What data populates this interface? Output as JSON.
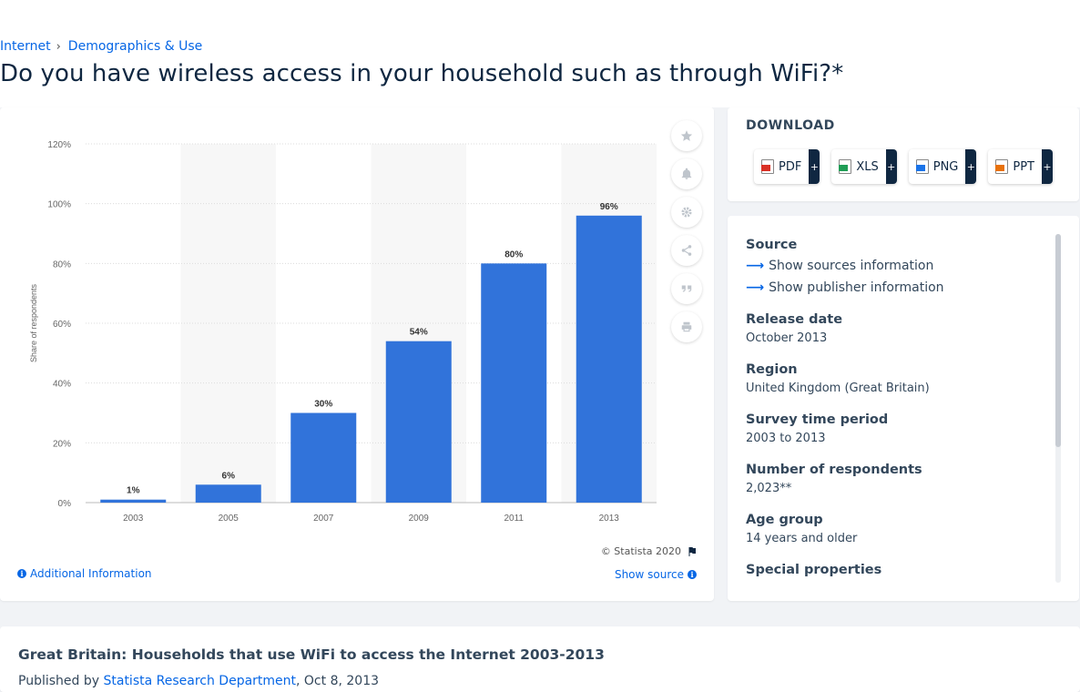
{
  "breadcrumb": {
    "items": [
      "Internet",
      "Demographics & Use"
    ],
    "separator": "›"
  },
  "page_title": "Do you have wireless access in your household such as through WiFi?*",
  "chart_data": {
    "type": "bar",
    "categories": [
      "2003",
      "2005",
      "2007",
      "2009",
      "2011",
      "2013"
    ],
    "values": [
      1,
      6,
      30,
      54,
      80,
      96
    ],
    "value_labels": [
      "1%",
      "6%",
      "30%",
      "54%",
      "80%",
      "96%"
    ],
    "ylabel": "Share of respondents",
    "xlabel": "",
    "ylim": [
      0,
      120
    ],
    "yticks": [
      "0%",
      "20%",
      "40%",
      "60%",
      "80%",
      "100%",
      "120%"
    ],
    "ytick_values": [
      0,
      20,
      40,
      60,
      80,
      100,
      120
    ],
    "bar_color": "#3173da",
    "grid": true,
    "alternate_column_shading": true
  },
  "chart_card": {
    "copyright": "© Statista 2020",
    "additional_info": "Additional Information",
    "show_source": "Show source",
    "tools": [
      "star-icon",
      "bell-icon",
      "gear-icon",
      "share-icon",
      "quote-icon",
      "print-icon"
    ]
  },
  "download": {
    "heading": "DOWNLOAD",
    "buttons": [
      {
        "label": "PDF",
        "plus": "+"
      },
      {
        "label": "XLS",
        "plus": "+"
      },
      {
        "label": "PNG",
        "plus": "+"
      },
      {
        "label": "PPT",
        "plus": "+"
      }
    ]
  },
  "info": {
    "source_label": "Source",
    "show_sources": "Show sources information",
    "show_publisher": "Show publisher information",
    "release_date_label": "Release date",
    "release_date": "October 2013",
    "region_label": "Region",
    "region": "United Kingdom (Great Britain)",
    "survey_period_label": "Survey time period",
    "survey_period": "2003 to 2013",
    "respondents_label": "Number of respondents",
    "respondents": "2,023**",
    "age_group_label": "Age group",
    "age_group": "14 years and older",
    "special_label": "Special properties"
  },
  "bottom": {
    "title": "Great Britain: Households that use WiFi to access the Internet 2003-2013",
    "published_prefix": "Published by",
    "publisher": "Statista Research Department",
    "published_date": ", Oct 8, 2013"
  },
  "colors": {
    "accent": "#0666e5",
    "navy": "#0f2741",
    "bar": "#3173da"
  }
}
